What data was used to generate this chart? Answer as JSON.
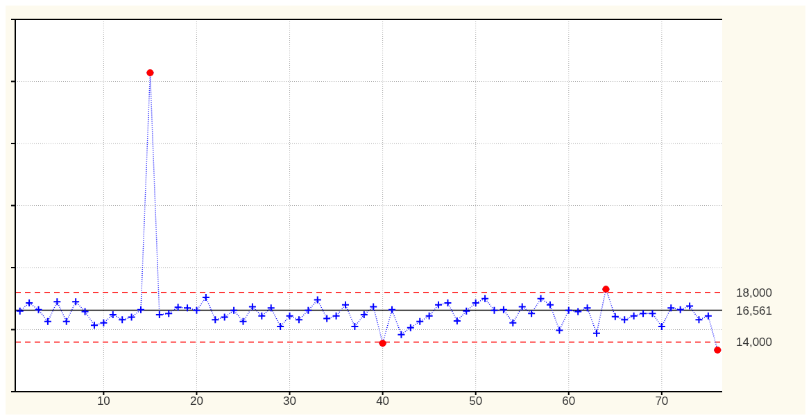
{
  "chart_data": {
    "type": "line",
    "x": [
      1,
      2,
      3,
      4,
      5,
      6,
      7,
      8,
      9,
      10,
      11,
      12,
      13,
      14,
      15,
      16,
      17,
      18,
      19,
      20,
      21,
      22,
      23,
      24,
      25,
      26,
      27,
      28,
      29,
      30,
      31,
      32,
      33,
      34,
      35,
      36,
      37,
      38,
      39,
      40,
      41,
      42,
      43,
      44,
      45,
      46,
      47,
      48,
      49,
      50,
      51,
      52,
      53,
      54,
      55,
      56,
      57,
      58,
      59,
      60,
      61,
      62,
      63,
      64,
      65,
      66,
      67,
      68,
      69,
      70,
      71,
      72,
      73,
      74,
      75,
      76
    ],
    "series": [
      {
        "color": "#0000ff",
        "marker": "cross",
        "line_style": "dotted",
        "values": [
          16500,
          17150,
          16600,
          15650,
          17250,
          15650,
          17250,
          16450,
          15350,
          15550,
          16200,
          15800,
          16000,
          16600,
          35700,
          16200,
          16300,
          16800,
          16750,
          16550,
          17600,
          15800,
          16000,
          16550,
          15650,
          16850,
          16100,
          16750,
          15250,
          16100,
          15800,
          16550,
          17400,
          15900,
          16100,
          17000,
          15250,
          16200,
          16850,
          13900,
          16600,
          14600,
          15150,
          15650,
          16100,
          17000,
          17150,
          15700,
          16500,
          17150,
          17500,
          16550,
          16600,
          15550,
          16850,
          16300,
          17500,
          17000,
          14950,
          16550,
          16450,
          16750,
          14700,
          18250,
          16050,
          15800,
          16100,
          16300,
          16300,
          15250,
          16750,
          16600,
          16900,
          15800,
          16100,
          13350
        ]
      },
      {
        "type": "scatter",
        "color": "#ff0000",
        "marker": "circle",
        "x": [
          15,
          40,
          64,
          76
        ],
        "values": [
          35700,
          13900,
          18250,
          13350
        ]
      }
    ],
    "xlim": [
      0.5,
      76.5
    ],
    "xticks": [
      10,
      20,
      30,
      40,
      50,
      60,
      70
    ],
    "ylim": [
      10000,
      40000
    ],
    "yticks": [
      {
        "value": 10000,
        "label": null
      },
      {
        "value": 15000,
        "label": null
      },
      {
        "value": 20000,
        "label": null
      },
      {
        "value": 25000,
        "label": null
      },
      {
        "value": 30000,
        "label": null
      },
      {
        "value": 35000,
        "label": null
      },
      {
        "value": 40000,
        "label": null
      }
    ],
    "tick_labels": "x",
    "grid": true,
    "ref_lines": [
      {
        "axis": "y",
        "value": 18000,
        "label": "18,000",
        "color": "#ff0000",
        "line_style": "dashed"
      },
      {
        "axis": "y",
        "value": 16561,
        "label": "16,561",
        "color": "#000000",
        "line_style": "solid"
      },
      {
        "axis": "y",
        "value": 14000,
        "label": "14,000",
        "color": "#ff0000",
        "line_style": "dashed"
      }
    ]
  }
}
